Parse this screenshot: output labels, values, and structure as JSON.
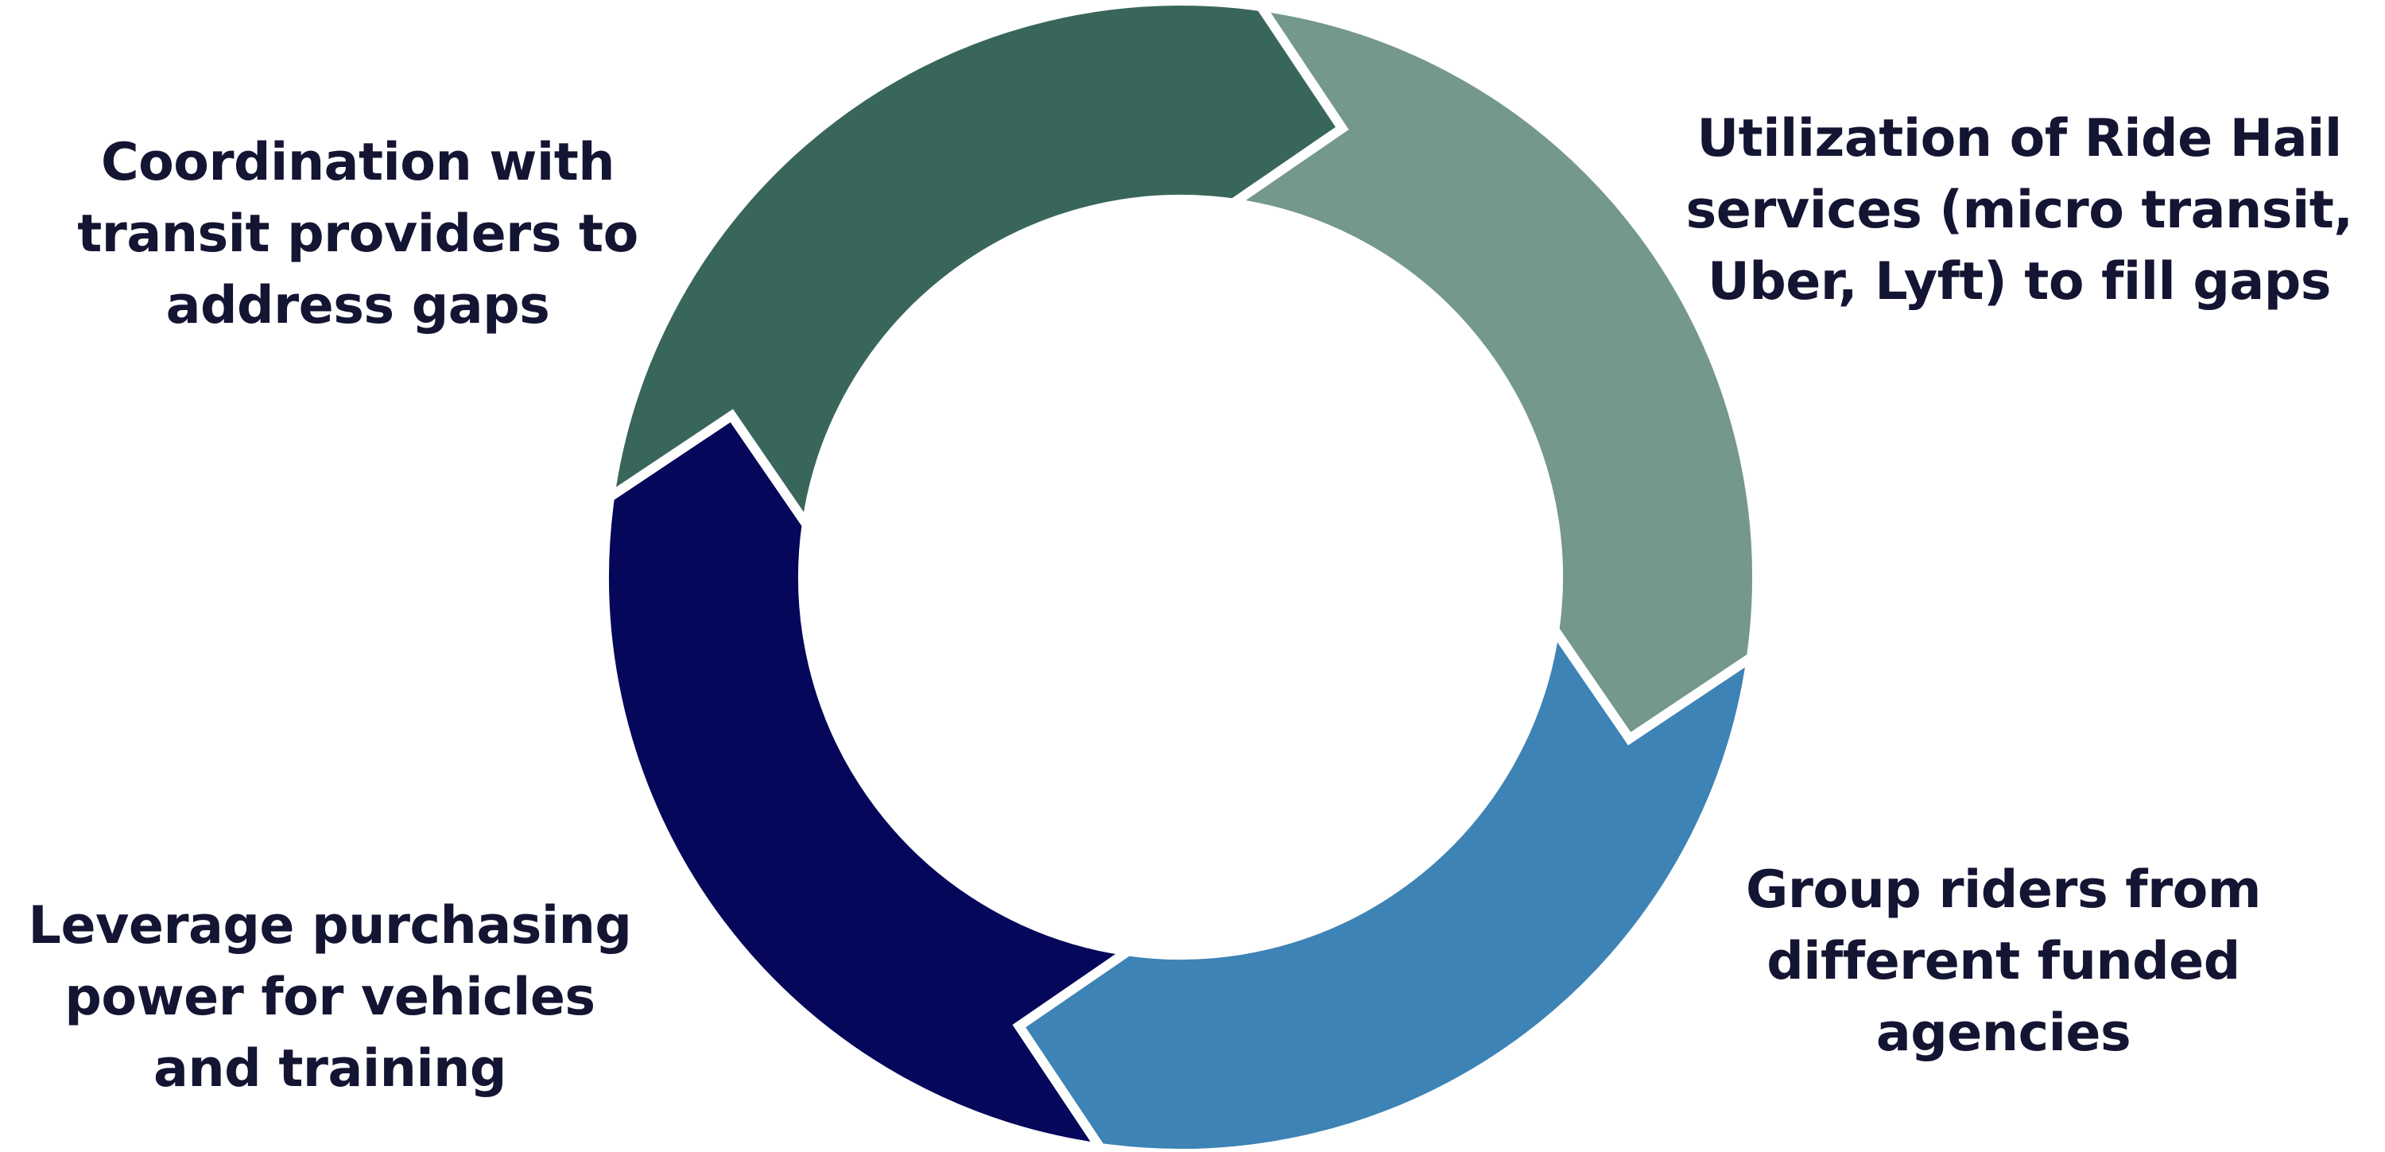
{
  "diagram": {
    "segments": [
      {
        "id": "top-right",
        "color": "#74988b",
        "label_lines": [
          "Utilization of Ride Hail",
          "services (micro transit,",
          "Uber, Lyft) to fill gaps"
        ]
      },
      {
        "id": "bottom-right",
        "color": "#3d83b5",
        "label_lines": [
          "Group riders from",
          "different funded",
          "agencies"
        ]
      },
      {
        "id": "bottom-left",
        "color": "#05075a",
        "label_lines": [
          "Leverage purchasing",
          "power for vehicles",
          "and training"
        ]
      },
      {
        "id": "top-left",
        "color": "#39665b",
        "label_lines": [
          "Coordination with",
          "transit providers to",
          "address gaps"
        ]
      }
    ]
  }
}
